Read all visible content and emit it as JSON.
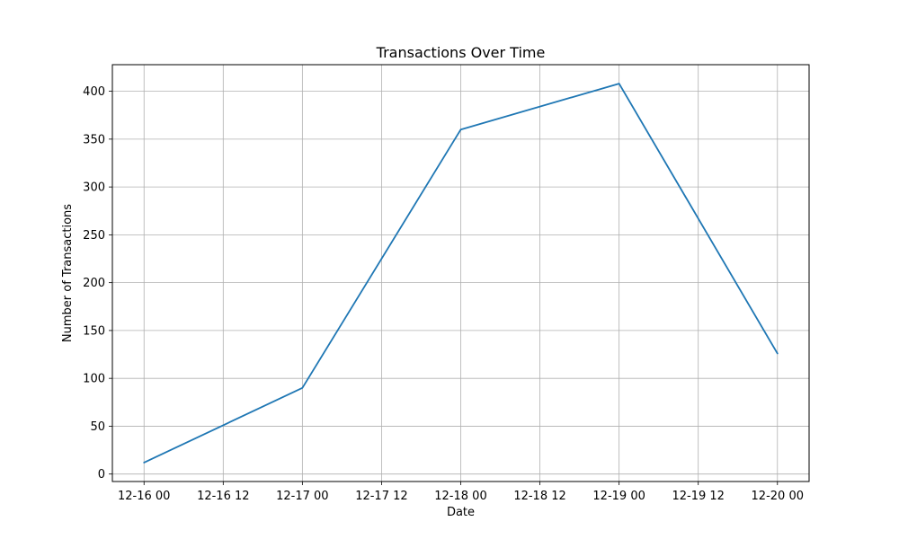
{
  "chart_data": {
    "type": "line",
    "title": "Transactions Over Time",
    "xlabel": "Date",
    "ylabel": "Number of Transactions",
    "x": [
      "2023-12-16",
      "2023-12-17",
      "2023-12-18",
      "2023-12-19",
      "2023-12-20"
    ],
    "series": [
      {
        "values": [
          12,
          90,
          360,
          408,
          126
        ]
      }
    ],
    "x_ticks": [
      "12-16 00",
      "12-16 12",
      "12-17 00",
      "12-17 12",
      "12-18 00",
      "12-18 12",
      "12-19 00",
      "12-19 12",
      "12-20 00"
    ],
    "y_ticks": [
      0,
      50,
      100,
      150,
      200,
      250,
      300,
      350,
      400
    ],
    "ylim": [
      -7.8,
      427.8
    ],
    "grid": true,
    "colors": {
      "line": "#1f77b4",
      "grid": "#b0b0b0",
      "axis": "#000000"
    }
  }
}
